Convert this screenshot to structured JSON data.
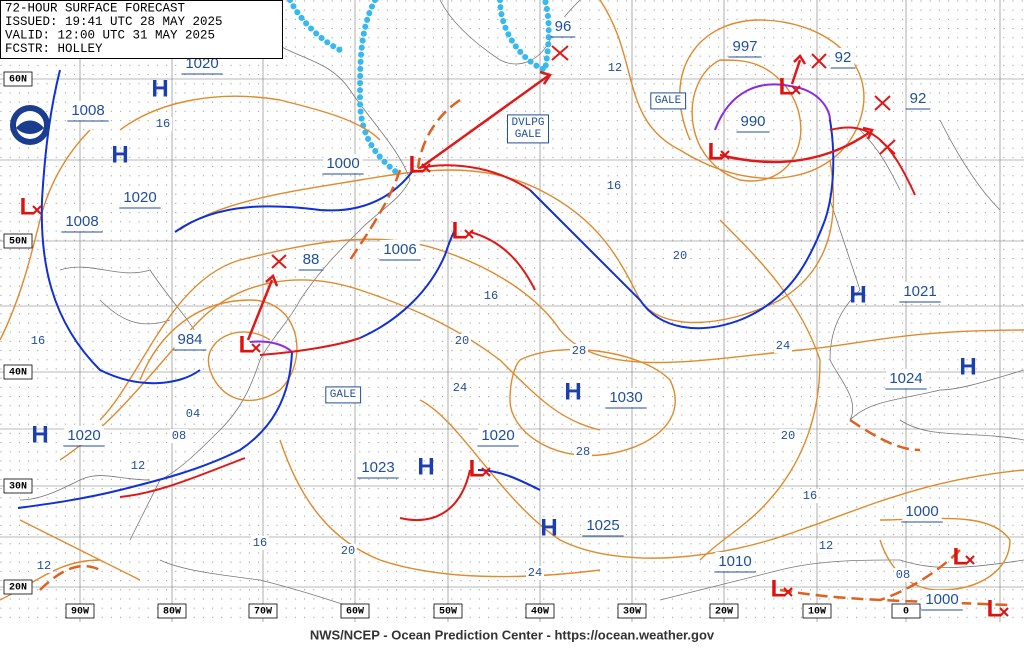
{
  "header": {
    "title": "72-HOUR SURFACE FORECAST",
    "issued": "ISSUED: 19:41 UTC 28 MAY 2025",
    "valid": "VALID:  12:00 UTC 31 MAY 2025",
    "forecaster": "FCSTR:  HOLLEY"
  },
  "latitude_labels": [
    "60N",
    "50N",
    "40N",
    "30N",
    "20N"
  ],
  "longitude_labels": [
    "90W",
    "80W",
    "70W",
    "60W",
    "50W",
    "40W",
    "30W",
    "20W",
    "10W",
    "0"
  ],
  "pressure_labels": [
    1020,
    1008,
    1020,
    1008,
    1000,
    984,
    1006,
    88,
    96,
    997,
    92,
    990,
    92,
    1021,
    1024,
    1030,
    1020,
    1023,
    1025,
    1000,
    1010,
    1000,
    1020
  ],
  "isobar_labels": [
    12,
    16,
    16,
    20,
    16,
    20,
    24,
    28,
    24,
    "04",
    "08",
    12,
    28,
    20,
    16,
    12,
    20,
    16,
    24,
    "08",
    12,
    16
  ],
  "high_centers": [
    "H",
    "H",
    "H",
    "H",
    "H",
    "H",
    "H",
    "H"
  ],
  "low_centers": [
    "L",
    "L",
    "L",
    "L",
    "L",
    "L",
    "L",
    "L",
    "L",
    "L"
  ],
  "warnings": [
    {
      "lines": [
        "GALE"
      ]
    },
    {
      "lines": [
        "DVLPG",
        "GALE"
      ]
    },
    {
      "lines": [
        "GALE"
      ]
    }
  ],
  "footer": "NWS/NCEP - Ocean Prediction Center - https://ocean.weather.gov"
}
